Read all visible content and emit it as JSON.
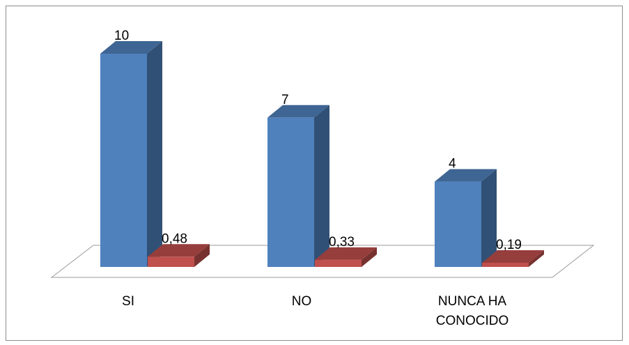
{
  "chart_data": {
    "type": "bar",
    "title": "",
    "xlabel": "",
    "ylabel": "",
    "categories": [
      [
        "SI"
      ],
      [
        "NO"
      ],
      [
        "NUNCA HA",
        "CONOCIDO"
      ]
    ],
    "series": [
      {
        "values": [
          10,
          7,
          4
        ],
        "labels": [
          "10",
          "7",
          "4"
        ],
        "color": "#4f81bd"
      },
      {
        "values": [
          0.48,
          0.33,
          0.19
        ],
        "labels": [
          "0,48",
          "0,33",
          "0,19"
        ],
        "color": "#c0504d"
      }
    ],
    "ylim": [
      0,
      10
    ],
    "grid": false,
    "legend": "none",
    "style": "3d-column"
  }
}
